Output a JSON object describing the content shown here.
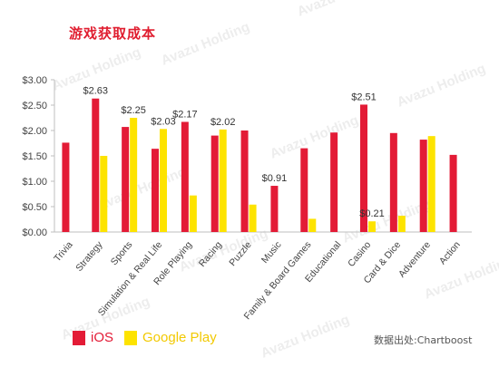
{
  "title": "游戏获取成本",
  "source": "数据出处:Chartboost",
  "watermark": "Avazu Holding",
  "colors": {
    "ios": "#e31b36",
    "google_play": "#fde300",
    "title": "#e01e30",
    "axis": "#bfbfbf"
  },
  "chart_data": {
    "type": "bar",
    "title": "游戏获取成本",
    "xlabel": "",
    "ylabel": "",
    "ylim": [
      0,
      3.0
    ],
    "yticks": [
      "$0.00",
      "$0.50",
      "$1.00",
      "$1.50",
      "$2.00",
      "$2.50",
      "$3.00"
    ],
    "ytick_values": [
      0,
      0.5,
      1.0,
      1.5,
      2.0,
      2.5,
      3.0
    ],
    "grid": false,
    "legend_position": "bottom-left",
    "categories": [
      "Trivia",
      "Strategy",
      "Sports",
      "Simulation & Real Life",
      "Role Playing",
      "Racing",
      "Puzzle",
      "Music",
      "Family & Board Games",
      "Educational",
      "Casino",
      "Card & Dice",
      "Adventure",
      "Action"
    ],
    "series": [
      {
        "name": "iOS",
        "values": [
          1.76,
          2.63,
          2.07,
          1.64,
          2.17,
          1.9,
          2.0,
          0.91,
          1.65,
          1.96,
          2.51,
          1.95,
          1.82,
          1.52
        ]
      },
      {
        "name": "Google Play",
        "values": [
          null,
          1.5,
          2.25,
          2.03,
          0.72,
          2.02,
          0.54,
          null,
          0.26,
          null,
          0.21,
          0.32,
          1.89,
          null
        ]
      }
    ],
    "data_labels": [
      {
        "category": "Strategy",
        "text": "$2.63"
      },
      {
        "category": "Sports",
        "text": "$2.25"
      },
      {
        "category": "Simulation & Real Life",
        "text": "$2.03"
      },
      {
        "category": "Role Playing",
        "text": "$2.17"
      },
      {
        "category": "Racing",
        "text": "$2.02"
      },
      {
        "category": "Music",
        "text": "$0.91"
      },
      {
        "category": "Casino",
        "text": "$2.51"
      },
      {
        "category": "Casino",
        "text": "$0.21"
      }
    ]
  }
}
